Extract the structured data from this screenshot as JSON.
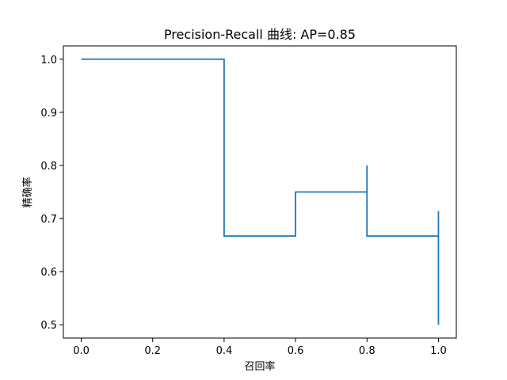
{
  "chart_data": {
    "type": "line",
    "title": "Precision-Recall 曲线: AP=0.85",
    "xlabel": "召回率",
    "ylabel": "精确率",
    "xlim": [
      -0.05,
      1.05
    ],
    "ylim": [
      0.475,
      1.025
    ],
    "grid": false,
    "x_ticks": [
      0.0,
      0.2,
      0.4,
      0.6,
      0.8,
      1.0
    ],
    "x_tick_labels": [
      "0.0",
      "0.2",
      "0.4",
      "0.6",
      "0.8",
      "1.0"
    ],
    "y_ticks": [
      0.5,
      0.6,
      0.7,
      0.8,
      0.9,
      1.0
    ],
    "y_tick_labels": [
      "0.5",
      "0.6",
      "0.7",
      "0.8",
      "0.9",
      "1.0"
    ],
    "series": [
      {
        "color": "#1f77b4",
        "drawstyle": "steps-post",
        "x": [
          0.0,
          0.4,
          0.4,
          0.6,
          0.8,
          0.8,
          1.0,
          1.0
        ],
        "y": [
          1.0,
          1.0,
          0.667,
          0.75,
          0.8,
          0.667,
          0.714,
          0.5
        ]
      }
    ]
  }
}
